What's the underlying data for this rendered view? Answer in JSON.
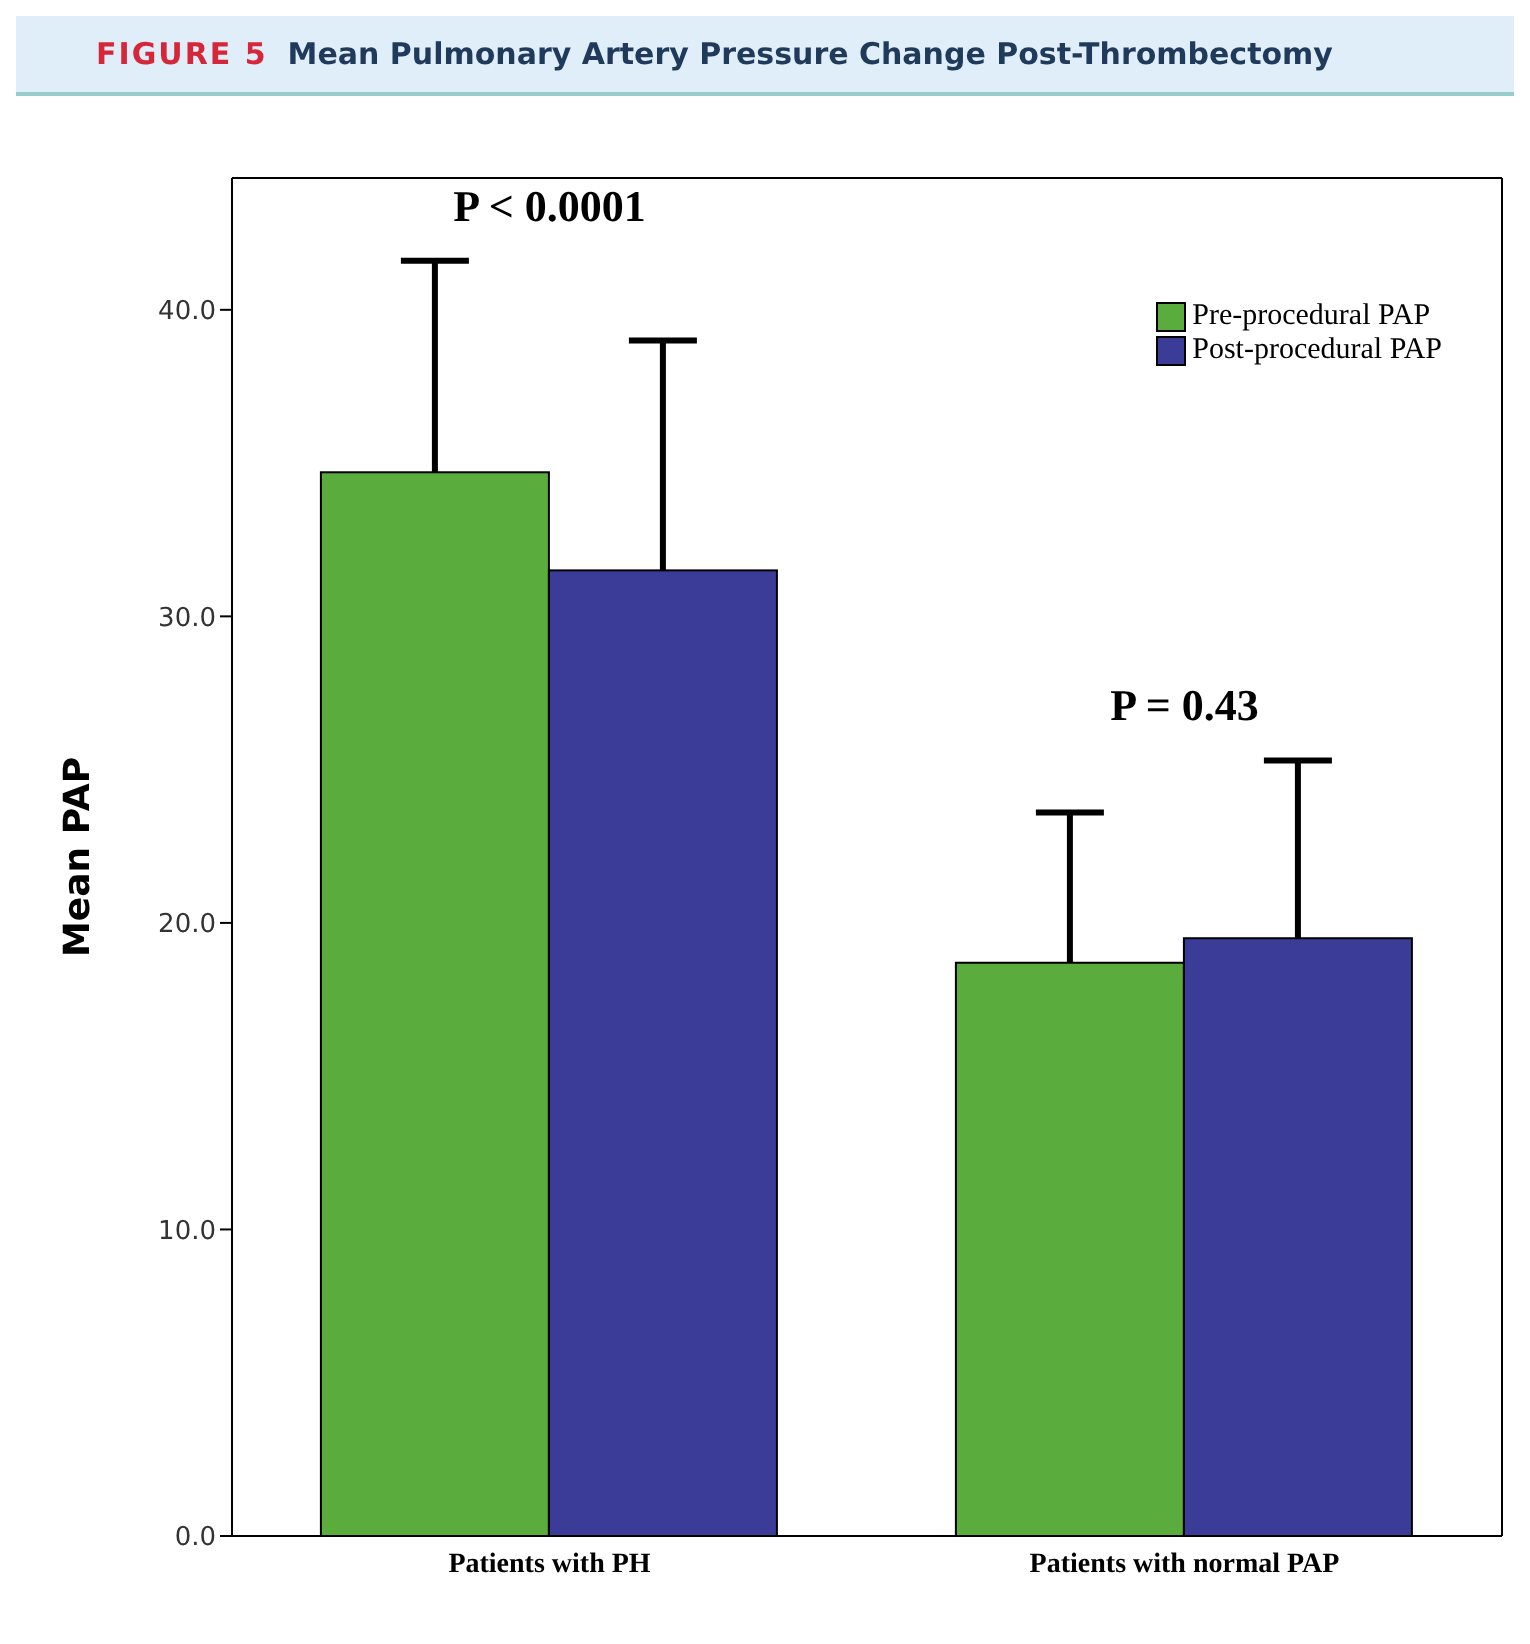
{
  "chart_data": {
    "type": "bar",
    "title": "FIGURE 5",
    "subtitle": "Mean Pulmonary Artery Pressure Change Post-Thrombectomy",
    "ylabel": "Mean PAP",
    "categories": [
      "Patients with PH",
      "Patients with normal PAP"
    ],
    "series": [
      {
        "name": "Pre-procedural PAP",
        "color": "#5aad3c",
        "values": [
          34.7,
          18.7
        ],
        "errors": [
          6.9,
          4.9
        ]
      },
      {
        "name": "Post-procedural PAP",
        "color": "#3a3c98",
        "values": [
          31.5,
          19.5
        ],
        "errors": [
          7.5,
          5.8
        ]
      }
    ],
    "ylim": [
      0,
      44.3
    ],
    "yticks": [
      {
        "value": 0,
        "label": "0.0"
      },
      {
        "value": 10,
        "label": "10.0"
      },
      {
        "value": 20,
        "label": "20.0"
      },
      {
        "value": 30,
        "label": "30.0"
      },
      {
        "value": 40,
        "label": "40.0"
      }
    ],
    "grid": false,
    "legend": "top right",
    "annotations": [
      "P < 0.0001",
      "P = 0.43"
    ]
  }
}
